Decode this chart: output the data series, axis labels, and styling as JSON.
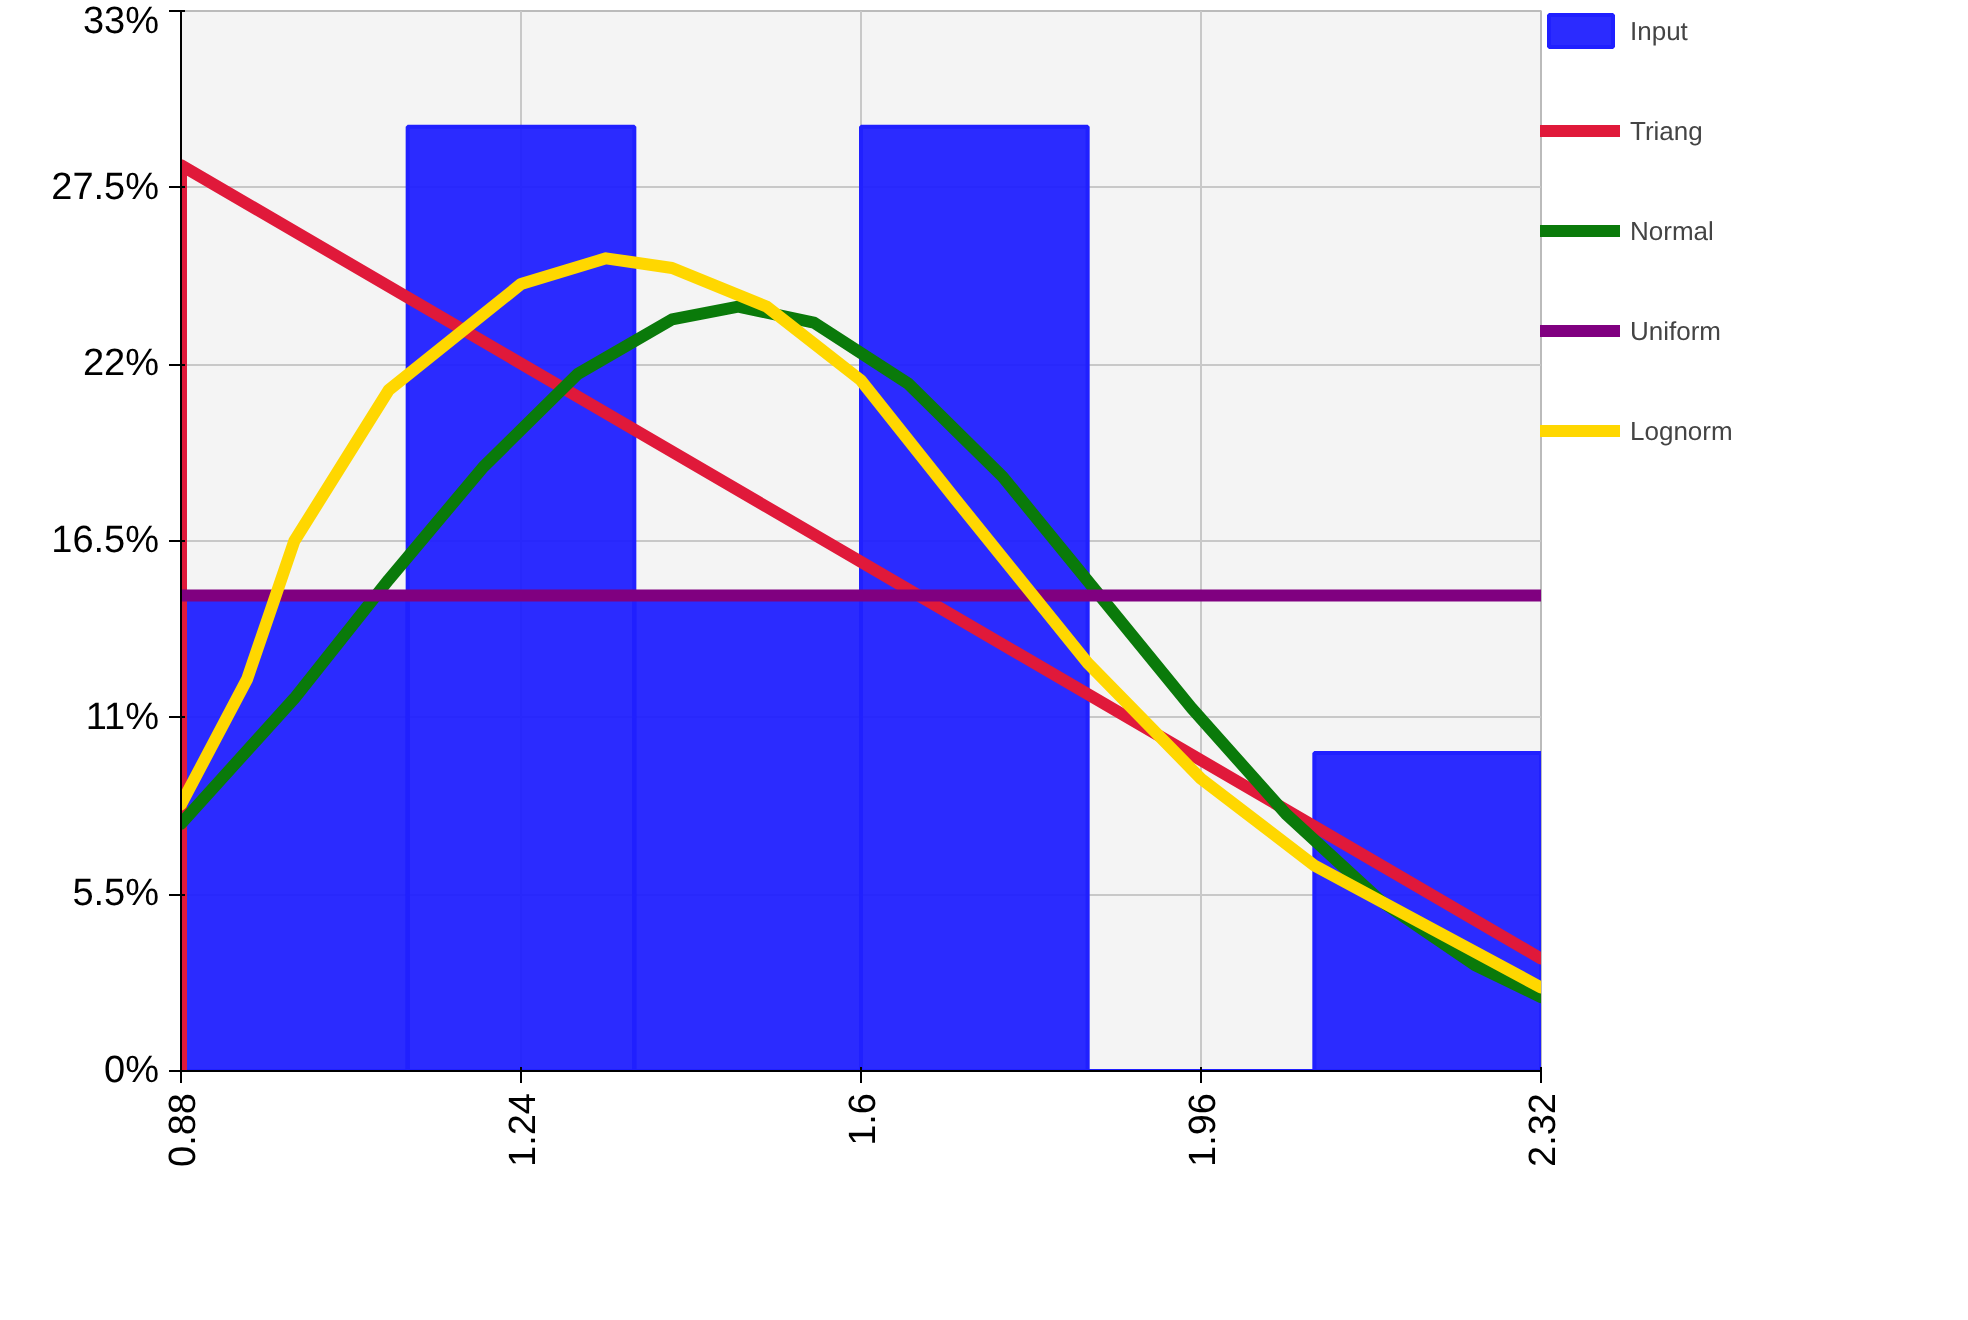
{
  "chart_data": {
    "type": "histogram",
    "bins": [
      0.88,
      1.12,
      1.36,
      1.6,
      1.84,
      2.08,
      2.32
    ],
    "xlim": [
      0.88,
      2.32
    ],
    "xticks": [
      0.88,
      1.24,
      1.6,
      1.96,
      2.32
    ],
    "ylim": [
      0,
      33
    ],
    "yticks": [
      {
        "value": 0,
        "label": "0%"
      },
      {
        "value": 5.5,
        "label": "5.5%"
      },
      {
        "value": 11,
        "label": "11%"
      },
      {
        "value": 16.5,
        "label": "16.5%"
      },
      {
        "value": 22,
        "label": "22%"
      },
      {
        "value": 27.5,
        "label": "27.5%"
      },
      {
        "value": 33,
        "label": "33%"
      }
    ],
    "grid": true,
    "legend": "right",
    "series": [
      {
        "name": "Input",
        "color": "#2020ff",
        "values": [
          14.7,
          29.4,
          14.7,
          29.4,
          0,
          9.9
        ]
      },
      {
        "name": "Triang",
        "type": "line",
        "color": "#e0193a",
        "x": [
          0.88,
          0.88,
          2.32
        ],
        "values": [
          0,
          28.2,
          3.5
        ]
      },
      {
        "name": "Normal",
        "type": "line",
        "color": "#0a7a0a",
        "x": [
          0.88,
          1.0,
          1.1,
          1.2,
          1.3,
          1.4,
          1.47,
          1.55,
          1.65,
          1.75,
          1.85,
          1.95,
          2.05,
          2.15,
          2.25,
          2.32
        ],
        "values": [
          7.7,
          11.6,
          15.3,
          18.8,
          21.7,
          23.4,
          23.8,
          23.3,
          21.4,
          18.5,
          14.9,
          11.3,
          8.0,
          5.3,
          3.3,
          2.3
        ]
      },
      {
        "name": "Uniform",
        "type": "line",
        "color": "#800080",
        "x": [
          0.88,
          2.32
        ],
        "values": [
          14.8,
          14.8
        ]
      },
      {
        "name": "Lognorm",
        "type": "line",
        "color": "#ffd700",
        "x": [
          0.88,
          0.95,
          1.0,
          1.1,
          1.24,
          1.33,
          1.4,
          1.5,
          1.6,
          1.7,
          1.84,
          1.96,
          2.08,
          2.2,
          2.32
        ],
        "values": [
          8.3,
          12.2,
          16.5,
          21.2,
          24.5,
          25.3,
          25.0,
          23.8,
          21.5,
          17.8,
          12.7,
          9.1,
          6.4,
          4.5,
          2.6
        ]
      }
    ]
  }
}
